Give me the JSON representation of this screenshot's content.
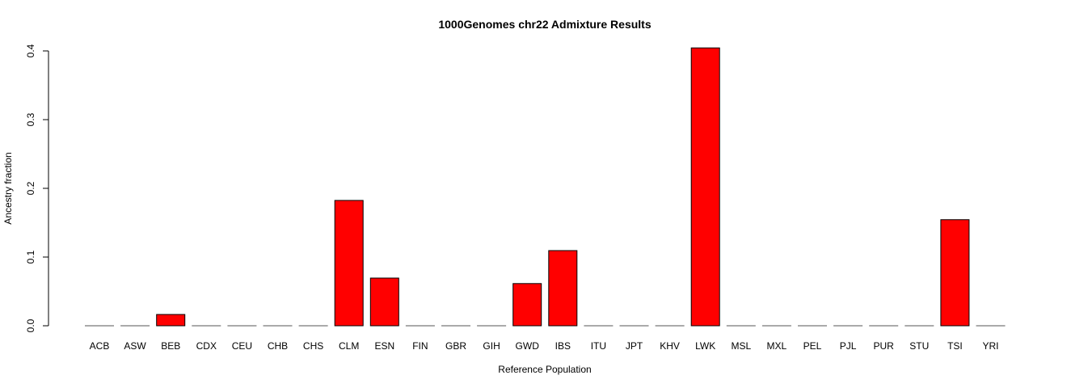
{
  "chart_data": {
    "type": "bar",
    "title": "1000Genomes chr22 Admixture Results",
    "xlabel": "Reference Population",
    "ylabel": "Ancestry fraction",
    "categories": [
      "ACB",
      "ASW",
      "BEB",
      "CDX",
      "CEU",
      "CHB",
      "CHS",
      "CLM",
      "ESN",
      "FIN",
      "GBR",
      "GIH",
      "GWD",
      "IBS",
      "ITU",
      "JPT",
      "KHV",
      "LWK",
      "MSL",
      "MXL",
      "PEL",
      "PJL",
      "PUR",
      "STU",
      "TSI",
      "YRI"
    ],
    "values": [
      0,
      0,
      0.017,
      0,
      0,
      0,
      0,
      0.183,
      0.07,
      0,
      0,
      0,
      0.062,
      0.11,
      0,
      0,
      0,
      0.405,
      0,
      0,
      0,
      0,
      0,
      0,
      0.155,
      0
    ],
    "yticks": [
      "0.0",
      "0.1",
      "0.2",
      "0.3",
      "0.4"
    ],
    "ylim": [
      0,
      0.4
    ],
    "bar_color": "#ff0000",
    "grid": false,
    "legend": "none"
  }
}
